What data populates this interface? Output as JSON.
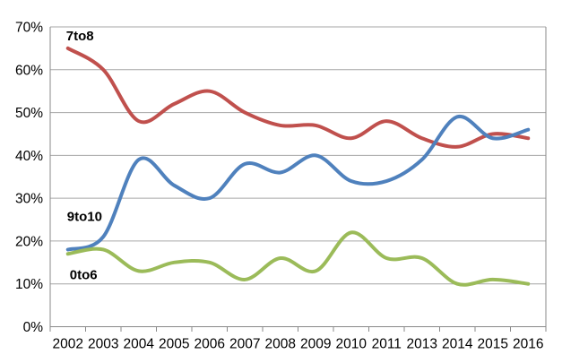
{
  "figure": {
    "background": "#FFFFFF"
  },
  "chart_data": {
    "type": "line",
    "smooth": true,
    "title": "",
    "xlabel": "",
    "ylabel": "",
    "grid": "horizontal",
    "legend_position": "inline-labels-near-first-point",
    "categories": [
      "2002",
      "2003",
      "2004",
      "2005",
      "2006",
      "2007",
      "2008",
      "2009",
      "2010",
      "2011",
      "2013",
      "2014",
      "2015",
      "2016"
    ],
    "series": [
      {
        "name": "7to8",
        "color": "#C0504D",
        "values": [
          65,
          60,
          48,
          52,
          55,
          50,
          47,
          47,
          44,
          48,
          44,
          42,
          45,
          44
        ]
      },
      {
        "name": "9to10",
        "color": "#4F81BD",
        "values": [
          18,
          21,
          39,
          33,
          30,
          38,
          36,
          40,
          34,
          34,
          39,
          49,
          44,
          46
        ]
      },
      {
        "name": "0to6",
        "color": "#9BBB59",
        "values": [
          17,
          18,
          13,
          15,
          15,
          11,
          16,
          13,
          22,
          16,
          16,
          10,
          11,
          10
        ]
      }
    ],
    "ylim": [
      0,
      70
    ],
    "y_tick_step": 10,
    "y_tick_labels": [
      "0%",
      "10%",
      "20%",
      "30%",
      "40%",
      "50%",
      "60%",
      "70%"
    ],
    "gridline_color": "#A6A6A6",
    "axis_color": "#898989",
    "text_color": "#000000"
  }
}
